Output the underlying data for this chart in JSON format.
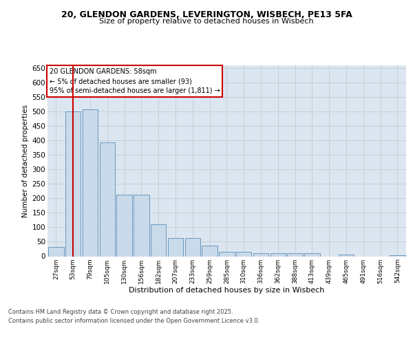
{
  "title_line1": "20, GLENDON GARDENS, LEVERINGTON, WISBECH, PE13 5FA",
  "title_line2": "Size of property relative to detached houses in Wisbech",
  "xlabel": "Distribution of detached houses by size in Wisbech",
  "ylabel": "Number of detached properties",
  "categories": [
    "27sqm",
    "53sqm",
    "79sqm",
    "105sqm",
    "130sqm",
    "156sqm",
    "182sqm",
    "207sqm",
    "233sqm",
    "259sqm",
    "285sqm",
    "310sqm",
    "336sqm",
    "362sqm",
    "388sqm",
    "413sqm",
    "439sqm",
    "465sqm",
    "491sqm",
    "516sqm",
    "542sqm"
  ],
  "values": [
    32,
    500,
    507,
    393,
    212,
    212,
    110,
    62,
    62,
    37,
    15,
    15,
    10,
    10,
    10,
    10,
    0,
    5,
    0,
    0,
    4
  ],
  "bar_color": "#c9daea",
  "bar_edge_color": "#5b8db8",
  "grid_color": "#c5cfd8",
  "plot_bg_color": "#dce6f0",
  "fig_bg_color": "#ffffff",
  "vline_x": 1,
  "vline_color": "#cc0000",
  "annotation_text": "20 GLENDON GARDENS: 58sqm\n← 5% of detached houses are smaller (93)\n95% of semi-detached houses are larger (1,811) →",
  "annotation_edge_color": "#cc0000",
  "footer_line1": "Contains HM Land Registry data © Crown copyright and database right 2025.",
  "footer_line2": "Contains public sector information licensed under the Open Government Licence v3.0.",
  "ylim_max": 660,
  "ytick_step": 50
}
